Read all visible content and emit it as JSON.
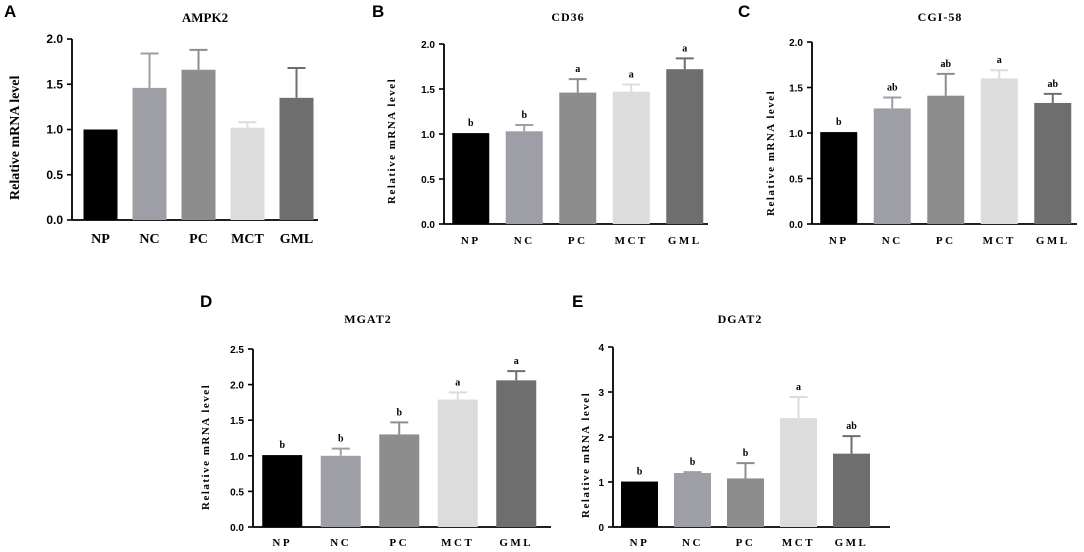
{
  "chart_data": [
    {
      "panel": "A",
      "type": "bar",
      "title": "AMPK2",
      "ylabel": "Relative mRNA  level",
      "xlabel": "",
      "categories": [
        "NP",
        "NC",
        "PC",
        "MCT",
        "GML"
      ],
      "values": [
        1.0,
        1.46,
        1.66,
        1.02,
        1.35
      ],
      "errors": [
        0,
        0.38,
        0.22,
        0.06,
        0.33
      ],
      "significance": [
        "",
        "",
        "",
        "",
        ""
      ],
      "ylim": [
        0,
        2.0
      ],
      "yticks": [
        "0.0",
        "0.5",
        "1.0",
        "1.5",
        "2.0"
      ],
      "colors": [
        "#000000",
        "#9e9ea6",
        "#8d8d8d",
        "#dcdcdc",
        "#6e6e6e"
      ],
      "grid": false
    },
    {
      "panel": "B",
      "type": "bar",
      "title": "CD36",
      "ylabel": "Relative mRNA  level",
      "xlabel": "",
      "categories": [
        "NP",
        "NC",
        "PC",
        "MCT",
        "GML"
      ],
      "values": [
        1.01,
        1.03,
        1.46,
        1.47,
        1.72
      ],
      "errors": [
        0,
        0.07,
        0.15,
        0.08,
        0.12
      ],
      "significance": [
        "b",
        "b",
        "a",
        "a",
        "a"
      ],
      "ylim": [
        0,
        2.0
      ],
      "yticks": [
        "0.0",
        "0.5",
        "1.0",
        "1.5",
        "2.0"
      ],
      "colors": [
        "#000000",
        "#9e9ea6",
        "#8d8d8d",
        "#dcdcdc",
        "#6e6e6e"
      ],
      "grid": false
    },
    {
      "panel": "C",
      "type": "bar",
      "title": "CGI-58",
      "ylabel": "Relative mRNA  level",
      "xlabel": "",
      "categories": [
        "NP",
        "NC",
        "PC",
        "MCT",
        "GML"
      ],
      "values": [
        1.01,
        1.27,
        1.41,
        1.6,
        1.33
      ],
      "errors": [
        0,
        0.12,
        0.24,
        0.09,
        0.1
      ],
      "significance": [
        "b",
        "ab",
        "ab",
        "a",
        "ab"
      ],
      "ylim": [
        0,
        2.0
      ],
      "yticks": [
        "0.0",
        "0.5",
        "1.0",
        "1.5",
        "2.0"
      ],
      "colors": [
        "#000000",
        "#9e9ea6",
        "#8d8d8d",
        "#dcdcdc",
        "#6e6e6e"
      ],
      "grid": false
    },
    {
      "panel": "D",
      "type": "bar",
      "title": "MGAT2",
      "ylabel": "Relative mRNA  level",
      "xlabel": "",
      "categories": [
        "NP",
        "NC",
        "PC",
        "MCT",
        "GML"
      ],
      "values": [
        1.01,
        1.0,
        1.3,
        1.79,
        2.06
      ],
      "errors": [
        0,
        0.1,
        0.17,
        0.1,
        0.13
      ],
      "significance": [
        "b",
        "b",
        "b",
        "a",
        "a"
      ],
      "ylim": [
        0,
        2.5
      ],
      "yticks": [
        "0.0",
        "0.5",
        "1.0",
        "1.5",
        "2.0",
        "2.5"
      ],
      "colors": [
        "#000000",
        "#9e9ea6",
        "#8d8d8d",
        "#dcdcdc",
        "#6e6e6e"
      ],
      "grid": false
    },
    {
      "panel": "E",
      "type": "bar",
      "title": "DGAT2",
      "ylabel": "Relative mRNA  level",
      "xlabel": "",
      "categories": [
        "NP",
        "NC",
        "PC",
        "MCT",
        "GML"
      ],
      "values": [
        1.01,
        1.2,
        1.08,
        2.42,
        1.63
      ],
      "errors": [
        0,
        0.02,
        0.34,
        0.47,
        0.39
      ],
      "significance": [
        "b",
        "b",
        "b",
        "a",
        "ab"
      ],
      "ylim": [
        0,
        4
      ],
      "yticks": [
        "0",
        "1",
        "2",
        "3",
        "4"
      ],
      "colors": [
        "#000000",
        "#9e9ea6",
        "#8d8d8d",
        "#dcdcdc",
        "#6e6e6e"
      ],
      "grid": false
    }
  ]
}
